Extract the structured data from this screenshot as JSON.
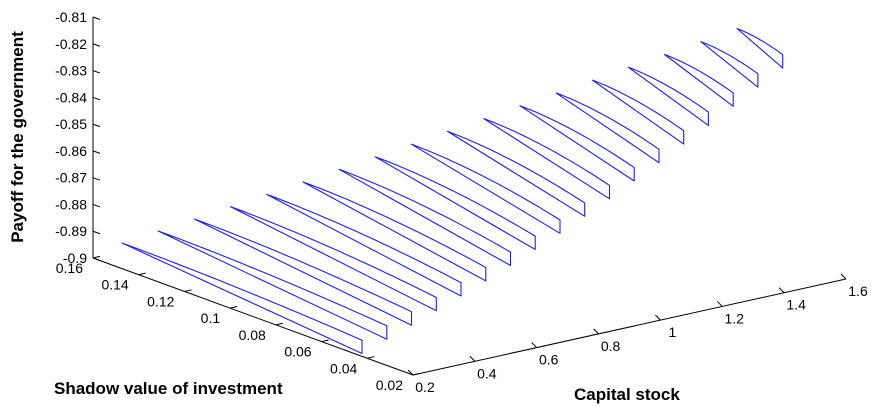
{
  "chart_data": {
    "type": "line3d",
    "title": "",
    "xlabel": "Capital stock",
    "ylabel": "Shadow value of investment",
    "zlabel": "Payoff for the government",
    "x_ticks": [
      "0.2",
      "0.4",
      "0.6",
      "0.8",
      "1",
      "1.2",
      "1.4",
      "1.6"
    ],
    "y_ticks": [
      "0.16",
      "0.14",
      "0.12",
      "0.1",
      "0.08",
      "0.06",
      "0.04",
      "0.02"
    ],
    "z_ticks": [
      "-0.81",
      "-0.82",
      "-0.83",
      "-0.84",
      "-0.85",
      "-0.86",
      "-0.87",
      "-0.88",
      "-0.89",
      "-0.9"
    ],
    "xlim": [
      0.2,
      1.6
    ],
    "ylim": [
      0.02,
      0.16
    ],
    "zlim": [
      -0.9,
      -0.81
    ],
    "grid": false,
    "line_color": "#1f1fe6",
    "slices": [
      {
        "k": 0.22,
        "q_start": 0.15,
        "q_end": 0.045,
        "z_top": -0.8918,
        "drop": 0.0035
      },
      {
        "k": 0.3,
        "q_start": 0.145,
        "q_end": 0.045,
        "z_top": -0.8878,
        "drop": 0.0042
      },
      {
        "k": 0.38,
        "q_start": 0.14,
        "q_end": 0.045,
        "z_top": -0.8838,
        "drop": 0.005
      },
      {
        "k": 0.46,
        "q_start": 0.135,
        "q_end": 0.045,
        "z_top": -0.8797,
        "drop": 0.0058
      },
      {
        "k": 0.54,
        "q_start": 0.13,
        "q_end": 0.045,
        "z_top": -0.8756,
        "drop": 0.0064
      },
      {
        "k": 0.62,
        "q_start": 0.125,
        "q_end": 0.045,
        "z_top": -0.8714,
        "drop": 0.007
      },
      {
        "k": 0.7,
        "q_start": 0.12,
        "q_end": 0.045,
        "z_top": -0.8672,
        "drop": 0.0075
      },
      {
        "k": 0.78,
        "q_start": 0.115,
        "q_end": 0.045,
        "z_top": -0.863,
        "drop": 0.0078
      },
      {
        "k": 0.86,
        "q_start": 0.11,
        "q_end": 0.045,
        "z_top": -0.8588,
        "drop": 0.008
      },
      {
        "k": 0.94,
        "q_start": 0.105,
        "q_end": 0.045,
        "z_top": -0.8545,
        "drop": 0.008
      },
      {
        "k": 1.02,
        "q_start": 0.1,
        "q_end": 0.045,
        "z_top": -0.8502,
        "drop": 0.0078
      },
      {
        "k": 1.1,
        "q_start": 0.095,
        "q_end": 0.045,
        "z_top": -0.8459,
        "drop": 0.0075
      },
      {
        "k": 1.18,
        "q_start": 0.09,
        "q_end": 0.045,
        "z_top": -0.8416,
        "drop": 0.007
      },
      {
        "k": 1.26,
        "q_start": 0.085,
        "q_end": 0.045,
        "z_top": -0.8373,
        "drop": 0.0064
      },
      {
        "k": 1.34,
        "q_start": 0.08,
        "q_end": 0.045,
        "z_top": -0.833,
        "drop": 0.0058
      },
      {
        "k": 1.42,
        "q_start": 0.075,
        "q_end": 0.045,
        "z_top": -0.8287,
        "drop": 0.005
      },
      {
        "k": 1.5,
        "q_start": 0.07,
        "q_end": 0.045,
        "z_top": -0.8244,
        "drop": 0.0042
      },
      {
        "k": 1.58,
        "q_start": 0.065,
        "q_end": 0.045,
        "z_top": -0.82,
        "drop": 0.0035
      }
    ]
  }
}
